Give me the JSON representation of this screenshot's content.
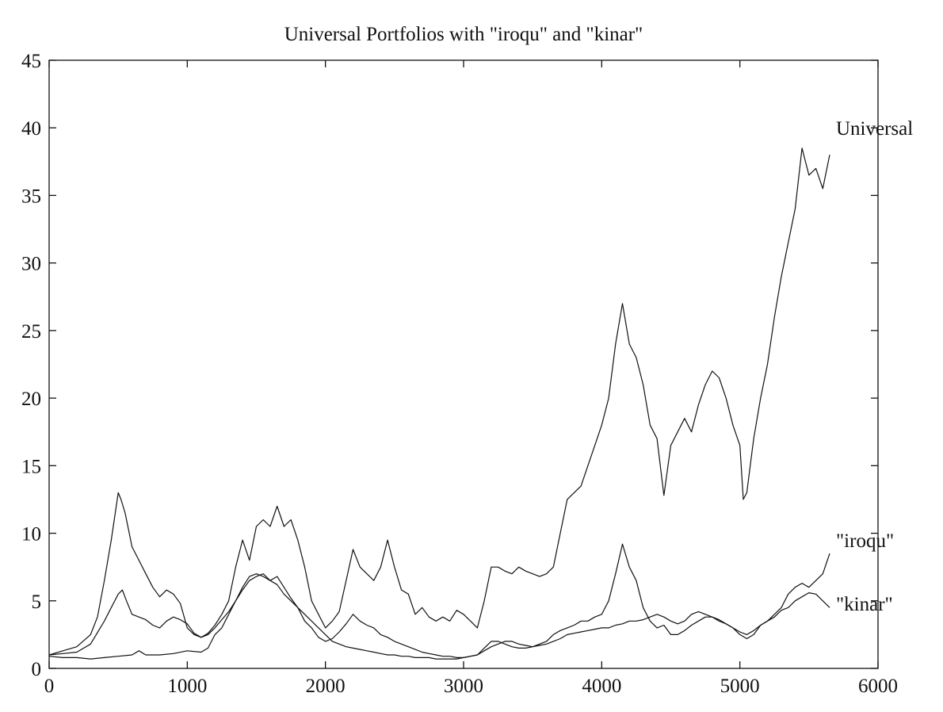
{
  "chart_data": {
    "type": "line",
    "title": "Universal Portfolios with \"iroqu\" and \"kinar\"",
    "xlabel": "",
    "ylabel": "",
    "xlim": [
      0,
      6000
    ],
    "ylim": [
      0,
      45
    ],
    "xticks": [
      0,
      1000,
      2000,
      3000,
      4000,
      5000,
      6000
    ],
    "yticks": [
      0,
      5,
      10,
      15,
      20,
      25,
      30,
      35,
      40,
      45
    ],
    "xtick_labels": [
      "0",
      "1000",
      "2000",
      "3000",
      "4000",
      "5000",
      "6000"
    ],
    "ytick_labels": [
      "0",
      "5",
      "10",
      "15",
      "20",
      "25",
      "30",
      "35",
      "40",
      "45"
    ],
    "grid": false,
    "legend": "none (series labeled at line ends)",
    "series": [
      {
        "name": "Universal",
        "label": "Universal",
        "x": [
          0,
          100,
          200,
          300,
          350,
          400,
          450,
          500,
          520,
          550,
          600,
          650,
          700,
          750,
          800,
          850,
          900,
          950,
          1000,
          1050,
          1100,
          1150,
          1200,
          1250,
          1300,
          1350,
          1400,
          1450,
          1500,
          1550,
          1600,
          1650,
          1700,
          1750,
          1800,
          1850,
          1900,
          1950,
          2000,
          2050,
          2100,
          2150,
          2200,
          2250,
          2300,
          2350,
          2400,
          2450,
          2500,
          2550,
          2600,
          2650,
          2700,
          2750,
          2800,
          2850,
          2900,
          2950,
          3000,
          3050,
          3100,
          3150,
          3200,
          3250,
          3300,
          3350,
          3400,
          3450,
          3500,
          3550,
          3600,
          3650,
          3700,
          3750,
          3800,
          3850,
          3900,
          3950,
          4000,
          4050,
          4100,
          4150,
          4200,
          4250,
          4300,
          4350,
          4400,
          4450,
          4500,
          4550,
          4600,
          4650,
          4700,
          4750,
          4800,
          4850,
          4900,
          4950,
          5000,
          5025,
          5050,
          5100,
          5150,
          5200,
          5250,
          5300,
          5350,
          5400,
          5450,
          5500,
          5550,
          5600,
          5650
        ],
        "y": [
          1.0,
          1.3,
          1.6,
          2.5,
          3.8,
          6.5,
          9.5,
          13.0,
          12.5,
          11.5,
          9.0,
          8.0,
          7.0,
          6.0,
          5.3,
          5.8,
          5.5,
          4.8,
          3.0,
          2.5,
          2.3,
          2.6,
          3.2,
          4.0,
          5.0,
          7.5,
          9.5,
          8.0,
          10.5,
          11.0,
          10.5,
          12.0,
          10.5,
          11.0,
          9.5,
          7.5,
          5.0,
          4.0,
          3.0,
          3.5,
          4.2,
          6.5,
          8.8,
          7.5,
          7.0,
          6.5,
          7.5,
          9.5,
          7.5,
          5.8,
          5.5,
          4.0,
          4.5,
          3.8,
          3.5,
          3.8,
          3.5,
          4.3,
          4.0,
          3.5,
          3.0,
          5.0,
          7.5,
          7.5,
          7.2,
          7.0,
          7.5,
          7.2,
          7.0,
          6.8,
          7.0,
          7.5,
          10.0,
          12.5,
          13.0,
          13.5,
          15.0,
          16.5,
          18.0,
          20.0,
          24.0,
          27.0,
          24.0,
          23.0,
          21.0,
          18.0,
          17.0,
          12.8,
          16.5,
          17.5,
          18.5,
          17.5,
          19.5,
          21.0,
          22.0,
          21.5,
          20.0,
          18.0,
          16.5,
          12.5,
          13.0,
          17.0,
          20.0,
          22.5,
          26.0,
          29.0,
          31.5,
          34.0,
          38.5,
          36.5,
          37.0,
          35.5,
          38.0
        ]
      },
      {
        "name": "\"iroqu\"",
        "label": "\"iroqu\"",
        "x": [
          0,
          100,
          200,
          300,
          400,
          450,
          500,
          530,
          560,
          600,
          650,
          700,
          750,
          800,
          850,
          900,
          950,
          1000,
          1050,
          1100,
          1150,
          1200,
          1250,
          1300,
          1350,
          1400,
          1450,
          1500,
          1550,
          1600,
          1650,
          1700,
          1750,
          1800,
          1850,
          1900,
          1950,
          2000,
          2050,
          2100,
          2150,
          2200,
          2250,
          2300,
          2350,
          2400,
          2450,
          2500,
          2550,
          2600,
          2650,
          2700,
          2750,
          2800,
          2850,
          2900,
          2950,
          3000,
          3050,
          3100,
          3150,
          3200,
          3250,
          3300,
          3350,
          3400,
          3450,
          3500,
          3550,
          3600,
          3650,
          3700,
          3750,
          3800,
          3850,
          3900,
          3950,
          4000,
          4050,
          4100,
          4150,
          4200,
          4250,
          4300,
          4350,
          4400,
          4450,
          4500,
          4550,
          4600,
          4650,
          4700,
          4750,
          4800,
          4850,
          4900,
          4950,
          5000,
          5050,
          5100,
          5150,
          5200,
          5250,
          5300,
          5350,
          5400,
          5450,
          5500,
          5550,
          5600,
          5650
        ],
        "y": [
          1.0,
          1.1,
          1.2,
          1.8,
          3.5,
          4.5,
          5.5,
          5.8,
          5.0,
          4.0,
          3.8,
          3.6,
          3.2,
          3.0,
          3.5,
          3.8,
          3.6,
          3.3,
          2.6,
          2.3,
          2.5,
          3.0,
          3.6,
          4.2,
          5.0,
          5.8,
          6.5,
          6.8,
          7.0,
          6.5,
          6.8,
          6.0,
          5.2,
          4.5,
          3.5,
          3.0,
          2.3,
          2.0,
          2.2,
          2.7,
          3.3,
          4.0,
          3.5,
          3.2,
          3.0,
          2.5,
          2.3,
          2.0,
          1.8,
          1.6,
          1.4,
          1.2,
          1.1,
          1.0,
          0.9,
          0.9,
          0.8,
          0.8,
          0.9,
          1.0,
          1.5,
          2.0,
          2.0,
          1.8,
          1.6,
          1.5,
          1.5,
          1.6,
          1.8,
          2.0,
          2.5,
          2.8,
          3.0,
          3.2,
          3.5,
          3.5,
          3.8,
          4.0,
          5.0,
          7.0,
          9.2,
          7.5,
          6.5,
          4.5,
          3.5,
          3.0,
          3.2,
          2.5,
          2.5,
          2.8,
          3.2,
          3.5,
          3.8,
          3.8,
          3.6,
          3.3,
          3.0,
          2.5,
          2.2,
          2.5,
          3.2,
          3.5,
          4.0,
          4.5,
          5.5,
          6.0,
          6.3,
          6.0,
          6.5,
          7.0,
          8.5
        ]
      },
      {
        "name": "\"kinar\"",
        "label": "\"kinar\"",
        "x": [
          0,
          100,
          200,
          300,
          400,
          500,
          600,
          650,
          700,
          800,
          900,
          1000,
          1100,
          1150,
          1200,
          1250,
          1300,
          1350,
          1400,
          1450,
          1500,
          1550,
          1600,
          1650,
          1700,
          1750,
          1800,
          1850,
          1900,
          1950,
          2000,
          2050,
          2100,
          2150,
          2200,
          2250,
          2300,
          2350,
          2400,
          2450,
          2500,
          2550,
          2600,
          2650,
          2700,
          2750,
          2800,
          2850,
          2900,
          2950,
          3000,
          3050,
          3100,
          3150,
          3200,
          3250,
          3300,
          3350,
          3400,
          3450,
          3500,
          3550,
          3600,
          3650,
          3700,
          3750,
          3800,
          3850,
          3900,
          3950,
          4000,
          4050,
          4100,
          4150,
          4200,
          4250,
          4300,
          4350,
          4400,
          4450,
          4500,
          4550,
          4600,
          4650,
          4700,
          4750,
          4800,
          4850,
          4900,
          4950,
          5000,
          5050,
          5100,
          5150,
          5200,
          5250,
          5300,
          5350,
          5400,
          5450,
          5500,
          5550,
          5600,
          5650
        ],
        "y": [
          0.9,
          0.8,
          0.8,
          0.7,
          0.8,
          0.9,
          1.0,
          1.3,
          1.0,
          1.0,
          1.1,
          1.3,
          1.2,
          1.5,
          2.5,
          3.0,
          4.0,
          5.0,
          6.0,
          6.8,
          7.0,
          6.8,
          6.5,
          6.2,
          5.5,
          5.0,
          4.5,
          4.0,
          3.5,
          3.0,
          2.5,
          2.0,
          1.8,
          1.6,
          1.5,
          1.4,
          1.3,
          1.2,
          1.1,
          1.0,
          1.0,
          0.9,
          0.9,
          0.8,
          0.8,
          0.8,
          0.7,
          0.7,
          0.7,
          0.7,
          0.8,
          0.9,
          1.0,
          1.3,
          1.6,
          1.8,
          2.0,
          2.0,
          1.8,
          1.7,
          1.6,
          1.7,
          1.8,
          2.0,
          2.2,
          2.5,
          2.6,
          2.7,
          2.8,
          2.9,
          3.0,
          3.0,
          3.2,
          3.3,
          3.5,
          3.5,
          3.6,
          3.8,
          4.0,
          3.8,
          3.5,
          3.3,
          3.5,
          4.0,
          4.2,
          4.0,
          3.8,
          3.5,
          3.3,
          3.0,
          2.7,
          2.5,
          2.8,
          3.2,
          3.5,
          3.8,
          4.3,
          4.5,
          5.0,
          5.3,
          5.6,
          5.5,
          5.0,
          4.5
        ]
      }
    ]
  }
}
